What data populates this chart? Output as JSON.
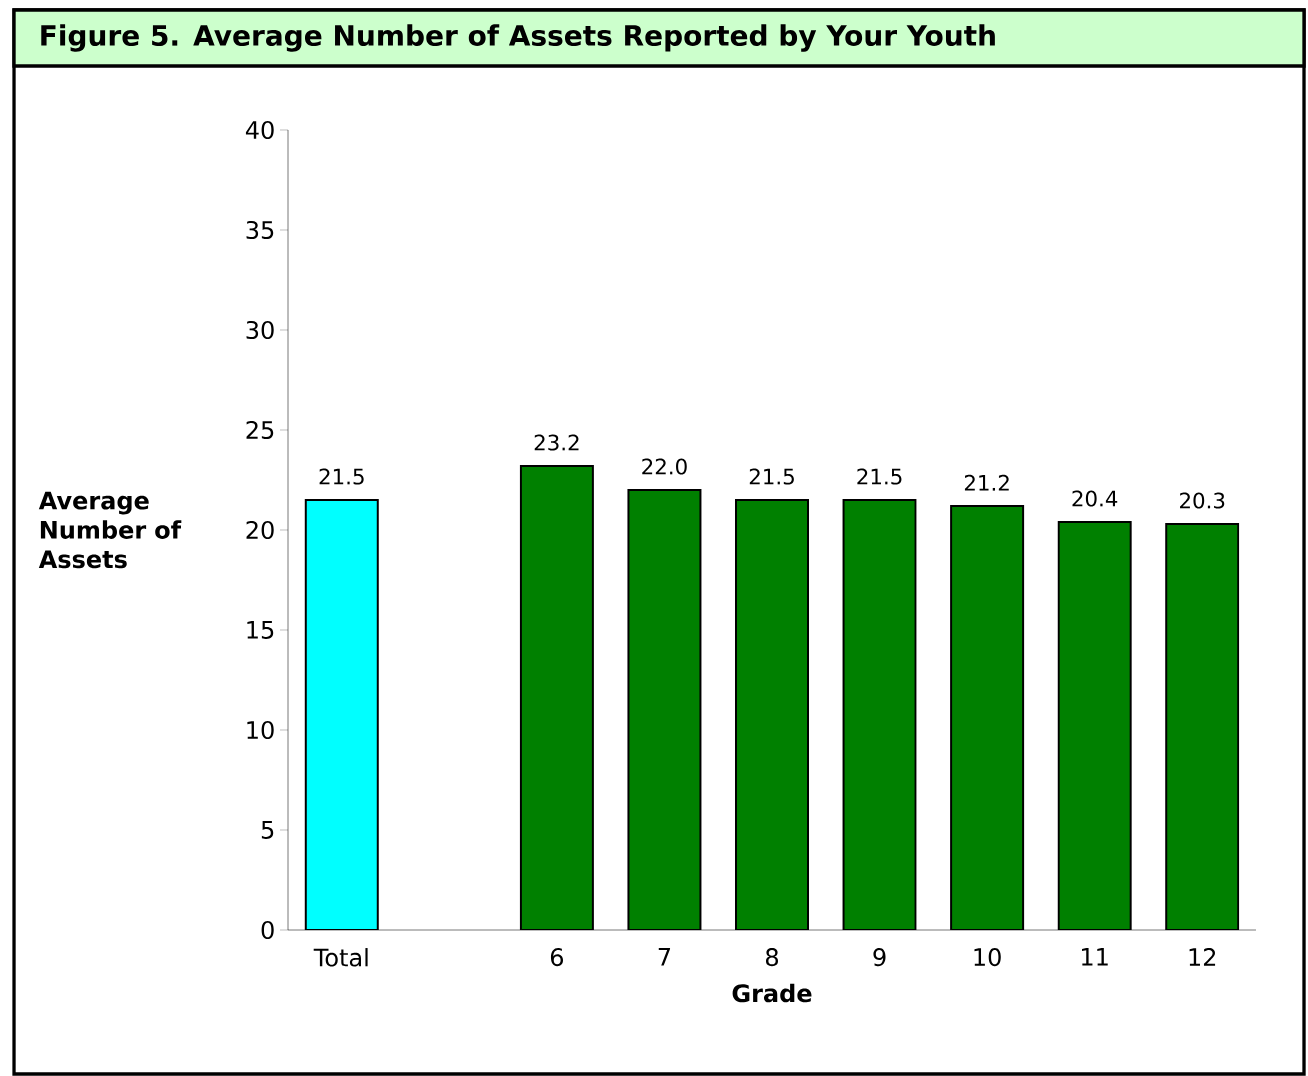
{
  "chart_data": {
    "type": "bar",
    "title": "Figure 5.  Average Number of Assets Reported by Your Youth",
    "xlabel": "Grade",
    "ylabel": "Average Number of Assets",
    "categories": [
      "Total",
      null,
      "6",
      "7",
      "8",
      "9",
      "10",
      "11",
      "12"
    ],
    "values": [
      21.5,
      null,
      23.2,
      22.0,
      21.5,
      21.5,
      21.2,
      20.4,
      20.3
    ],
    "colors": [
      "#00ffff",
      null,
      "#008000",
      "#008000",
      "#008000",
      "#008000",
      "#008000",
      "#008000",
      "#008000"
    ],
    "value_labels": [
      "21.5",
      null,
      "23.2",
      "22.0",
      "21.5",
      "21.5",
      "21.2",
      "20.4",
      "20.3"
    ],
    "ylim": [
      0,
      40
    ],
    "yticks": [
      0,
      5,
      10,
      15,
      20,
      25,
      30,
      35,
      40
    ],
    "grid": false
  }
}
